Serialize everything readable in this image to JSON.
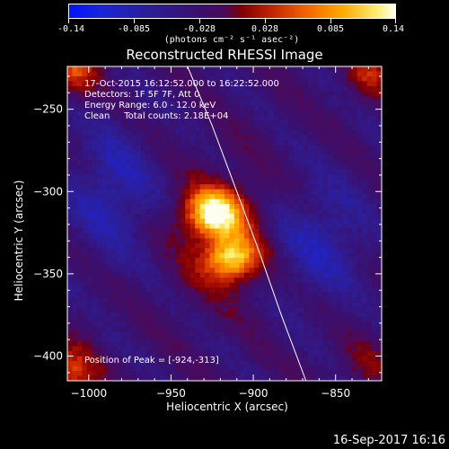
{
  "colorbar": {
    "ticks": [
      "-0.14",
      "-0.085",
      "-0.028",
      "0.028",
      "0.085",
      "0.14"
    ],
    "unit_label": "(photons cm⁻² s⁻¹ asec⁻²)",
    "range": [
      -0.14,
      0.14
    ]
  },
  "chart_data": {
    "type": "heatmap",
    "title": "Reconstructed RHESSI Image",
    "xlabel": "Heliocentric X (arcsec)",
    "ylabel": "Heliocentric Y (arcsec)",
    "xlim": [
      -1013,
      -822
    ],
    "ylim": [
      -415,
      -224
    ],
    "x_ticks": [
      "−1000",
      "−950",
      "−900",
      "−850"
    ],
    "x_tick_values": [
      -1000,
      -950,
      -900,
      -850
    ],
    "y_ticks": [
      "−250",
      "−300",
      "−350",
      "−400"
    ],
    "y_tick_values": [
      -250,
      -300,
      -350,
      -400
    ],
    "color_range": [
      -0.14,
      0.14
    ],
    "sources": [
      {
        "x": -924,
        "y": -313,
        "peak": 0.14
      },
      {
        "x": -913,
        "y": -341,
        "peak": 0.125
      }
    ],
    "limb_curve": [
      [
        -940,
        -224
      ],
      [
        -925,
        -260
      ],
      [
        -910,
        -300
      ],
      [
        -897,
        -335
      ],
      [
        -883,
        -375
      ],
      [
        -868,
        -415
      ]
    ],
    "peak_marker": {
      "x": -924,
      "y": -313
    }
  },
  "info": {
    "line1": "17-Oct-2015 16:12:52.000 to 16:22:52.000",
    "line2": "Detectors: 1F 5F 7F, Att 0",
    "line3": "Energy Range: 6.0 - 12.0 keV",
    "line4": "Clean     Total counts: 2.18E+04",
    "peak": "Position of Peak = [-924,-313]"
  },
  "footer": {
    "date": "16-Sep-2017 16:16"
  }
}
